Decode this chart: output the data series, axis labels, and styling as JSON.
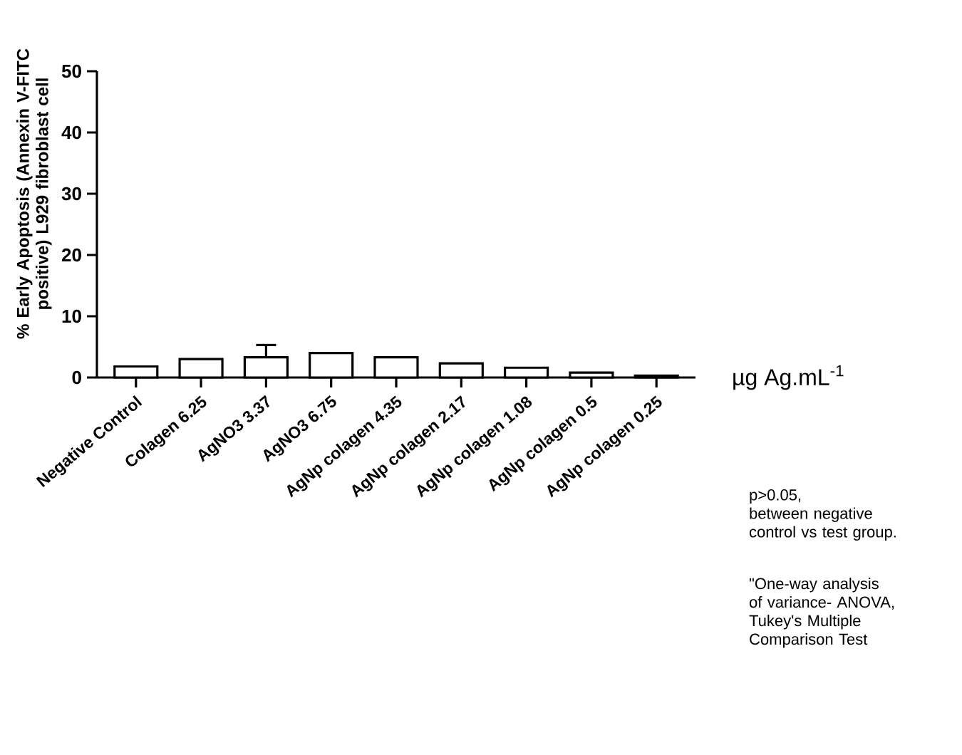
{
  "chart_data": {
    "type": "bar",
    "ylabel": "% Early Apoptosis (Annexin V-FITC positive) L929 fibroblast cell",
    "xlabel": "µg Ag.mL$^{-1}$",
    "categories": [
      "Negative Control",
      "Colagen 6.25",
      "AgNO3   3.37",
      "AgNO3   6.75",
      "AgNp colagen 4.35",
      "AgNp colagen  2.17",
      "AgNp colagen 1.08",
      "AgNp colagen  0.5",
      "AgNp colagen 0.25"
    ],
    "values": [
      1.8,
      3.0,
      3.3,
      4.0,
      3.3,
      2.3,
      1.6,
      0.8,
      0.3
    ],
    "errors": [
      null,
      null,
      2.0,
      null,
      null,
      null,
      null,
      null,
      null
    ],
    "color": "#000000",
    "ylim": [
      0,
      50
    ],
    "yticks": [
      0,
      10,
      20,
      30,
      40,
      50
    ],
    "annotations": [
      "p>0.05,\nbetween negative control vs test group.",
      "\"One-way analysis of variance-  ANOVA, Tukey's Multiple Comparison Test"
    ]
  }
}
